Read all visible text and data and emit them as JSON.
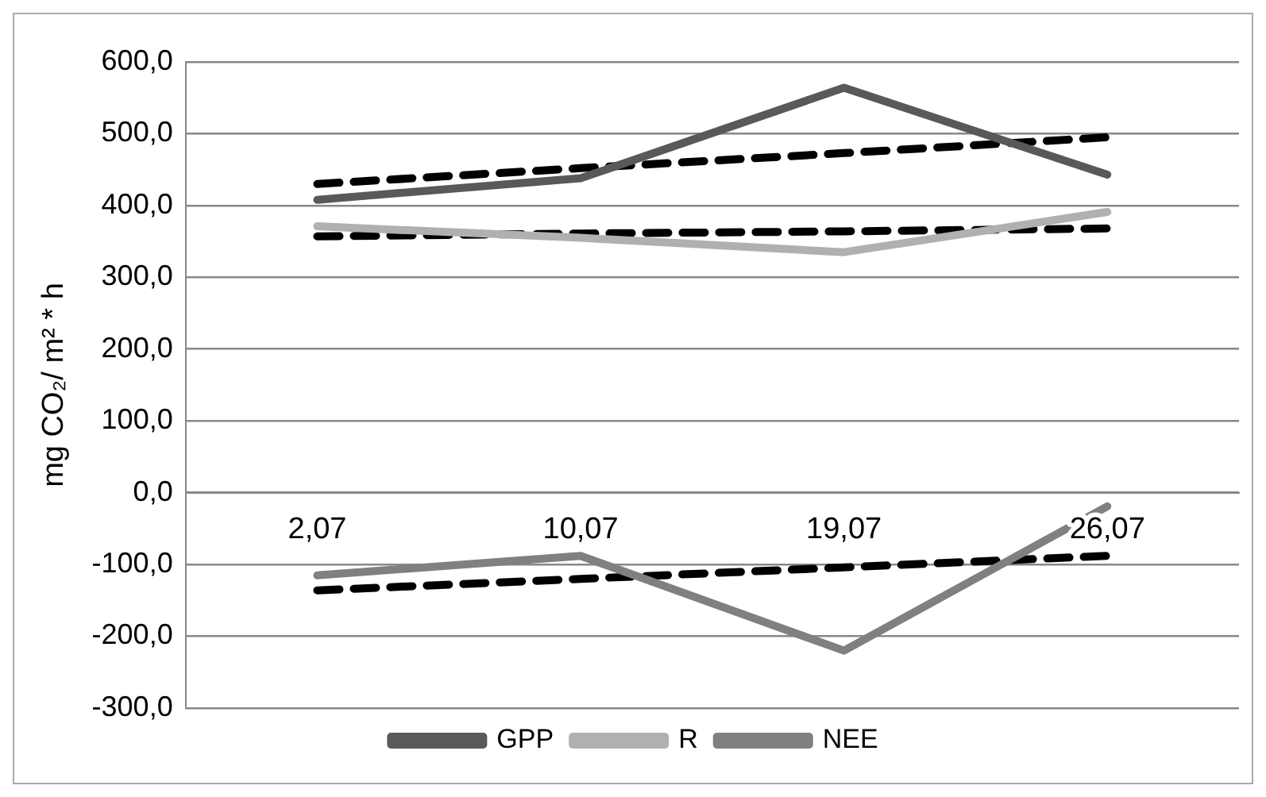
{
  "chart_data": {
    "type": "line",
    "ylabel": "mg CO₂/ m² * h",
    "categories": [
      "2,07",
      "10,07",
      "19,07",
      "26,07"
    ],
    "series": [
      {
        "name": "GPP",
        "color": "#595959",
        "values": [
          408,
          438,
          564,
          443
        ]
      },
      {
        "name": "R",
        "color": "#b0b0b0",
        "values": [
          371,
          355,
          335,
          391
        ]
      },
      {
        "name": "NEE",
        "color": "#808080",
        "values": [
          -115,
          -88,
          -220,
          -19
        ]
      },
      {
        "color": "#000000",
        "line_style": "dashed",
        "values": [
          430,
          452,
          473,
          495
        ]
      },
      {
        "color": "#000000",
        "line_style": "dashed",
        "values": [
          357,
          361,
          364,
          368
        ]
      },
      {
        "color": "#000000",
        "line_style": "dashed",
        "values": [
          -136,
          -120,
          -104,
          -88
        ]
      }
    ],
    "ylim": [
      -300,
      600
    ],
    "yticks": [
      {
        "value": -300,
        "label": "-300,0"
      },
      {
        "value": -200,
        "label": "-200,0"
      },
      {
        "value": -100,
        "label": "-100,0"
      },
      {
        "value": 0,
        "label": "0,0"
      },
      {
        "value": 100,
        "label": "100,0"
      },
      {
        "value": 200,
        "label": "200,0"
      },
      {
        "value": 300,
        "label": "300,0"
      },
      {
        "value": 400,
        "label": "400,0"
      },
      {
        "value": 500,
        "label": "500,0"
      },
      {
        "value": 600,
        "label": "600,0"
      }
    ],
    "grid": "y",
    "legend": "bottom",
    "marker": "none"
  }
}
